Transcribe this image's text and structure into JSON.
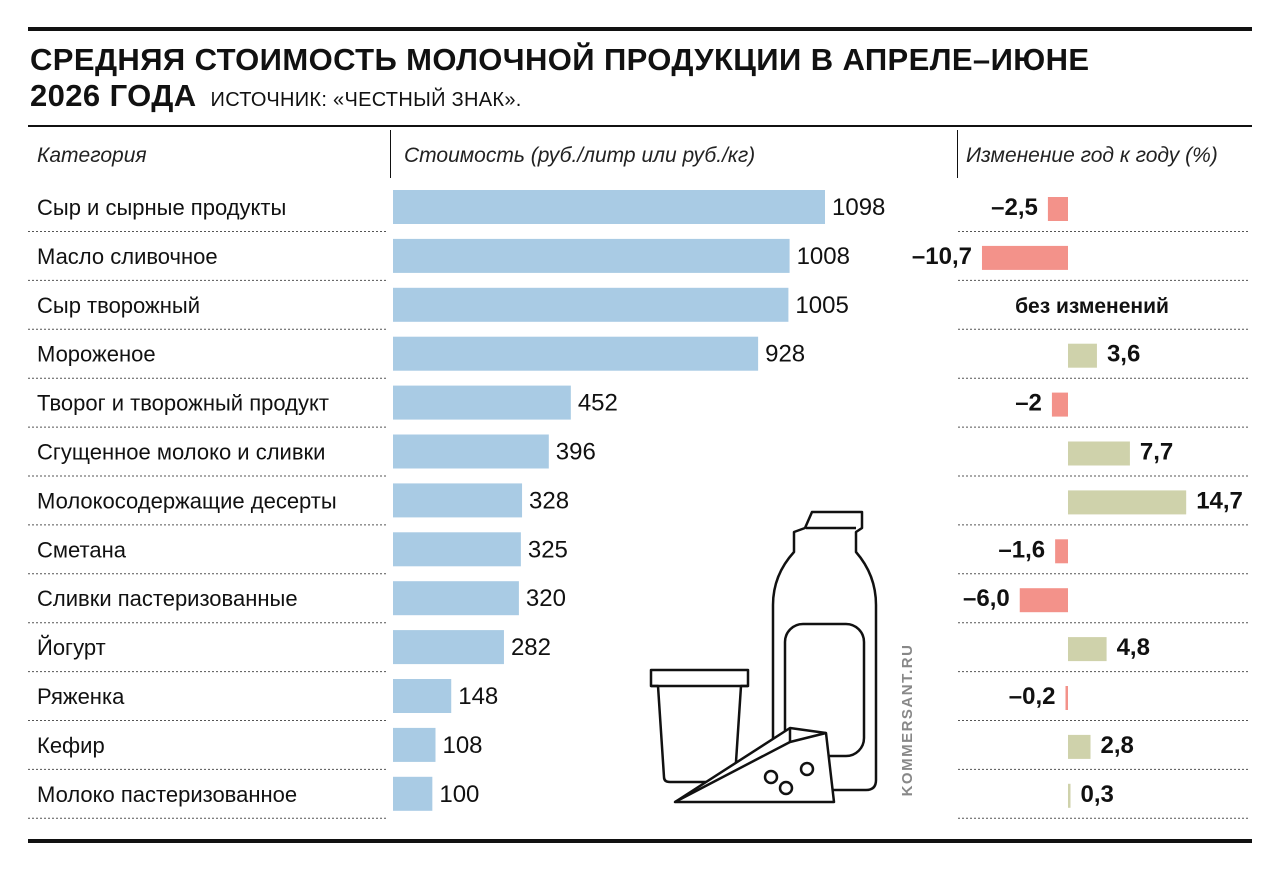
{
  "header": {
    "title_line1": "СРЕДНЯЯ СТОИМОСТЬ МОЛОЧНОЙ ПРОДУКЦИИ В АПРЕЛЕ–ИЮНЕ",
    "title_line2": "2026 ГОДА",
    "source": "ИСТОЧНИК: «ЧЕСТНЫЙ ЗНАК»."
  },
  "columns": {
    "category": "Категория",
    "cost": "Стоимость (руб./литр или руб./кг)",
    "change": "Изменение год к году (%)"
  },
  "watermark": "KOMMERSANT.RU",
  "colors": {
    "cost_bar": "#a9cbe4",
    "change_negative": "#f3928a",
    "change_positive": "#cfd2ab",
    "text": "#111111"
  },
  "chart_data": {
    "type": "bar",
    "orientation": "horizontal",
    "categories": [
      "Сыр и сырные продукты",
      "Масло сливочное",
      "Сыр творожный",
      "Мороженое",
      "Творог и творожный продукт",
      "Сгущенное молоко и сливки",
      "Молокосодержащие десерты",
      "Сметана",
      "Сливки пастеризованные",
      "Йогурт",
      "Ряженка",
      "Кефир",
      "Молоко пастеризованное"
    ],
    "series": [
      {
        "name": "Стоимость (руб./литр или руб./кг)",
        "values": [
          1098,
          1008,
          1005,
          928,
          452,
          396,
          328,
          325,
          320,
          282,
          148,
          108,
          100
        ],
        "labels": [
          "1098",
          "1008",
          "1005",
          "928",
          "452",
          "396",
          "328",
          "325",
          "320",
          "282",
          "148",
          "108",
          "100"
        ]
      },
      {
        "name": "Изменение год к году (%)",
        "values": [
          -2.5,
          -10.7,
          0,
          3.6,
          -2,
          7.7,
          14.7,
          -1.6,
          -6.0,
          4.8,
          -0.2,
          2.8,
          0.3
        ],
        "labels": [
          "–2,5",
          "–10,7",
          "без изменений",
          "3,6",
          "–2",
          "7,7",
          "14,7",
          "–1,6",
          "–6,0",
          "4,8",
          "–0,2",
          "2,8",
          "0,3"
        ]
      }
    ],
    "grid": false,
    "legend": "none"
  }
}
